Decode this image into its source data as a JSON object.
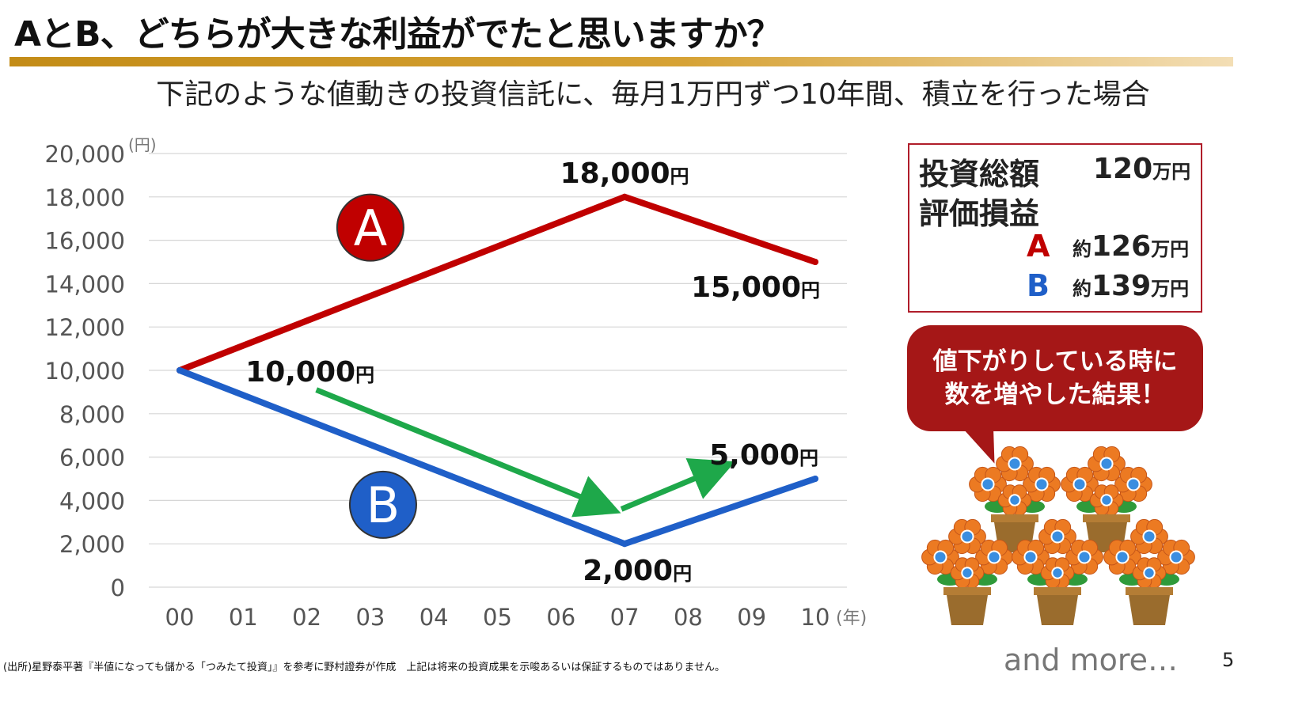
{
  "title": "AとB、どちらが大きな利益がでたと思いますか？",
  "subtitle": "下記のような値動きの投資信託に、毎月1万円ずつ10年間、積立を行った場合",
  "chart_data": {
    "type": "line",
    "x": [
      "00",
      "01",
      "02",
      "03",
      "04",
      "05",
      "06",
      "07",
      "08",
      "09",
      "10"
    ],
    "x_unit": "(年)",
    "y_unit": "(円)",
    "ylim": [
      0,
      20000
    ],
    "yticks": [
      "0",
      "2,000",
      "4,000",
      "6,000",
      "8,000",
      "10,000",
      "12,000",
      "14,000",
      "16,000",
      "18,000",
      "20,000"
    ],
    "grid": true,
    "series": [
      {
        "name": "A",
        "color": "#c00000",
        "points": [
          {
            "x": 0,
            "y": 10000
          },
          {
            "x": 7,
            "y": 18000
          },
          {
            "x": 10,
            "y": 15000
          }
        ]
      },
      {
        "name": "B",
        "color": "#1f5fc8",
        "points": [
          {
            "x": 0,
            "y": 10000
          },
          {
            "x": 7,
            "y": 2000
          },
          {
            "x": 10,
            "y": 5000
          }
        ]
      }
    ],
    "annotations": [
      {
        "text": "18,000",
        "unit": "円"
      },
      {
        "text": "15,000",
        "unit": "円"
      },
      {
        "text": "10,000",
        "unit": "円"
      },
      {
        "text": "2,000",
        "unit": "円"
      },
      {
        "text": "5,000",
        "unit": "円"
      }
    ],
    "arrow_color": "#1ea84a"
  },
  "info": {
    "total_label": "投資総額",
    "total_value": "120",
    "eval_label": "評価損益",
    "unit": "万円",
    "approx": "約",
    "a_label": "A",
    "a_value": "126",
    "a_color": "#c00000",
    "b_label": "B",
    "b_value": "139",
    "b_color": "#1f5fc8"
  },
  "bubble": {
    "line1": "値下がりしている時に",
    "line2": "数を増やした結果！"
  },
  "source": "(出所)星野泰平著『半値になっても儲かる「つみたて投資」』を参考に野村證券が作成　上記は将来の投資成果を示唆あるいは保証するものではありません。",
  "and_more": "and more…",
  "page_number": "5",
  "colors": {
    "accent": "#c38c17",
    "bubble": "#a51717",
    "flower": "#ec7a22",
    "flower_center": "#3a8ee0",
    "pot": "#9a6c2d"
  }
}
